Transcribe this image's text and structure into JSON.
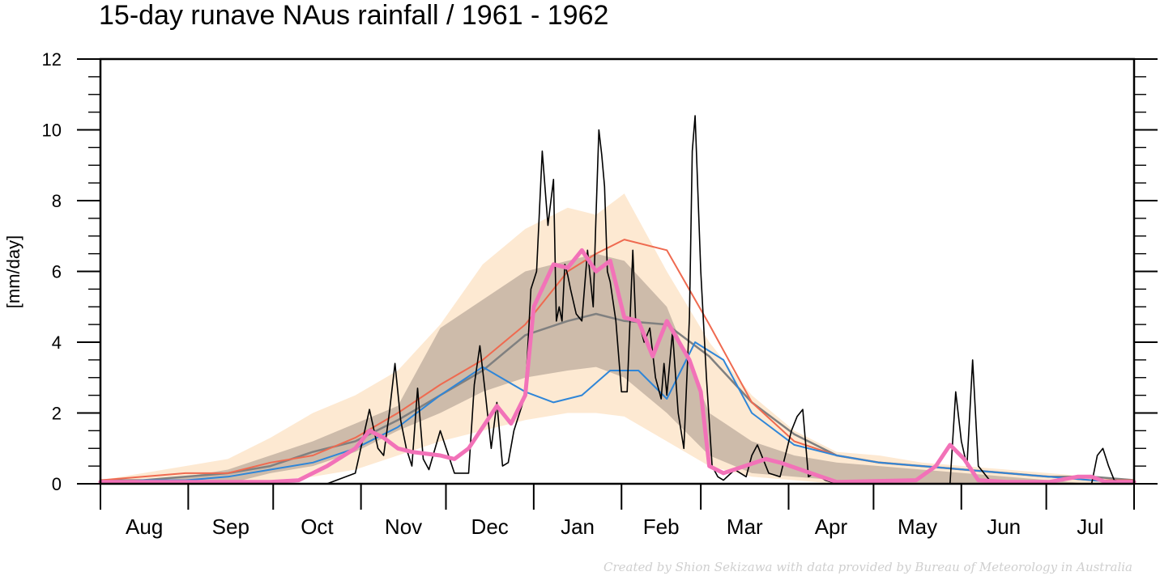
{
  "chart_data": {
    "type": "line",
    "title": "15-day runave NAus rainfall  /  1961 - 1962",
    "ylabel": "[mm/day]",
    "ylim": [
      0,
      12
    ],
    "yticks": [
      "0",
      "2",
      "4",
      "6",
      "8",
      "10",
      "12"
    ],
    "xlim": [
      0,
      365
    ],
    "months": [
      "Aug",
      "Sep",
      "Oct",
      "Nov",
      "Dec",
      "Jan",
      "Feb",
      "Mar",
      "Apr",
      "May",
      "Jun",
      "Jul"
    ],
    "month_starts": [
      0,
      31,
      61,
      92,
      122,
      153,
      184,
      212,
      243,
      273,
      304,
      334,
      365
    ],
    "credit": "Created by Shion Sekizawa with data provided by Bureau of Meteorology in Australia",
    "colors": {
      "outer_band": "#fde9d2",
      "inner_band": "#cdbbaa",
      "median": "#808080",
      "red_line": "#ef6a50",
      "blue_line": "#2f86d8",
      "pink_line": "#f272b8",
      "daily": "#000000"
    },
    "bands": {
      "x": [
        0,
        15,
        30,
        45,
        60,
        75,
        90,
        105,
        120,
        135,
        150,
        165,
        175,
        185,
        200,
        215,
        230,
        245,
        260,
        275,
        290,
        305,
        320,
        335,
        350,
        365
      ],
      "outer_low": [
        0,
        0,
        0,
        0,
        0.1,
        0.2,
        0.4,
        0.8,
        1.2,
        1.5,
        1.8,
        2.0,
        2.0,
        1.9,
        1.2,
        0.5,
        0.2,
        0.1,
        0,
        0,
        0,
        0,
        0,
        0,
        0,
        0
      ],
      "outer_high": [
        0.1,
        0.3,
        0.5,
        0.7,
        1.3,
        2.0,
        2.5,
        3.2,
        4.5,
        6.2,
        7.2,
        7.8,
        7.6,
        8.2,
        6.0,
        4.0,
        2.5,
        1.5,
        0.9,
        0.8,
        0.6,
        0.5,
        0.4,
        0.3,
        0.2,
        0.1
      ],
      "inner_low": [
        0,
        0,
        0,
        0,
        0.3,
        0.5,
        0.9,
        1.5,
        2.0,
        2.6,
        3.0,
        3.2,
        3.3,
        3.0,
        2.0,
        0.8,
        0.3,
        0.2,
        0.1,
        0,
        0,
        0,
        0,
        0,
        0,
        0
      ],
      "inner_high": [
        0,
        0.1,
        0.2,
        0.4,
        0.8,
        1.2,
        1.7,
        2.2,
        4.4,
        5.2,
        6.0,
        6.3,
        6.5,
        6.3,
        5.0,
        2.0,
        1.2,
        0.8,
        0.6,
        0.5,
        0.4,
        0.3,
        0.2,
        0.1,
        0,
        0
      ]
    },
    "series": [
      {
        "name": "",
        "color": "#808080",
        "x": [
          0,
          15,
          30,
          45,
          60,
          75,
          90,
          105,
          120,
          135,
          150,
          165,
          175,
          185,
          200,
          215,
          230,
          245,
          260,
          275,
          290,
          305,
          320,
          335,
          350,
          365
        ],
        "values": [
          0.1,
          0.1,
          0.2,
          0.3,
          0.5,
          0.9,
          1.2,
          1.8,
          2.5,
          3.2,
          4.2,
          4.6,
          4.8,
          4.6,
          4.5,
          3.6,
          2.3,
          1.4,
          0.8,
          0.6,
          0.5,
          0.4,
          0.3,
          0.2,
          0.2,
          0.1
        ]
      },
      {
        "name": "",
        "color": "#ef6a50",
        "x": [
          0,
          15,
          30,
          45,
          60,
          75,
          90,
          105,
          120,
          135,
          150,
          165,
          175,
          185,
          200,
          215,
          230,
          245,
          260,
          275,
          290,
          305,
          320,
          335,
          350,
          365
        ],
        "values": [
          0.1,
          0.2,
          0.3,
          0.3,
          0.6,
          0.8,
          1.3,
          2.0,
          2.8,
          3.5,
          4.5,
          6.0,
          6.5,
          6.9,
          6.6,
          4.5,
          2.3,
          1.2,
          0.8,
          0.6,
          0.5,
          0.4,
          0.3,
          0.2,
          0.1,
          0.1
        ]
      },
      {
        "name": "",
        "color": "#2f86d8",
        "x": [
          0,
          15,
          30,
          45,
          60,
          75,
          90,
          105,
          120,
          135,
          150,
          160,
          170,
          180,
          190,
          200,
          210,
          220,
          230,
          245,
          260,
          275,
          290,
          305,
          320,
          335,
          350,
          365
        ],
        "values": [
          0,
          0.1,
          0.1,
          0.2,
          0.4,
          0.6,
          1.0,
          1.6,
          2.5,
          3.3,
          2.6,
          2.3,
          2.5,
          3.2,
          3.2,
          2.4,
          4.0,
          3.5,
          2.0,
          1.1,
          0.8,
          0.6,
          0.5,
          0.4,
          0.3,
          0.2,
          0.1,
          0
        ]
      },
      {
        "name": "",
        "color": "#f272b8",
        "x": [
          0,
          60,
          70,
          80,
          90,
          95,
          100,
          105,
          110,
          120,
          125,
          130,
          140,
          145,
          150,
          153,
          160,
          165,
          170,
          175,
          180,
          185,
          190,
          195,
          200,
          208,
          212,
          215,
          220,
          235,
          240,
          260,
          288,
          295,
          300,
          305,
          310,
          320,
          335,
          345,
          350,
          355,
          365
        ],
        "values": [
          0.05,
          0.05,
          0.1,
          0.5,
          1.0,
          1.5,
          1.3,
          1.0,
          0.9,
          0.8,
          0.7,
          1.0,
          2.2,
          1.7,
          2.5,
          5.0,
          6.2,
          6.1,
          6.6,
          6.0,
          6.3,
          4.7,
          4.6,
          3.6,
          4.6,
          3.5,
          2.6,
          0.5,
          0.3,
          0.7,
          0.6,
          0.05,
          0.1,
          0.5,
          1.1,
          0.7,
          0.1,
          0.05,
          0.05,
          0.2,
          0.2,
          0.05,
          0.05
        ]
      },
      {
        "name": "",
        "color": "#000000",
        "x": [
          0,
          80,
          90,
          95,
          98,
          100,
          102,
          104,
          106,
          108,
          110,
          112,
          114,
          116,
          120,
          125,
          130,
          132,
          134,
          136,
          138,
          140,
          142,
          144,
          146,
          148,
          150,
          152,
          154,
          156,
          158,
          160,
          161,
          162,
          163,
          164,
          165,
          166,
          168,
          170,
          172,
          174,
          175,
          176,
          177,
          178,
          179,
          180,
          182,
          184,
          186,
          188,
          189,
          190,
          192,
          194,
          196,
          198,
          199,
          200,
          202,
          204,
          206,
          208,
          209,
          210,
          212,
          214,
          216,
          218,
          220,
          224,
          226,
          228,
          230,
          232,
          236,
          240,
          244,
          246,
          248,
          250,
          252,
          256,
          260,
          300,
          302,
          304,
          306,
          308,
          310,
          315,
          350,
          352,
          354,
          356,
          358,
          365
        ],
        "values": [
          0,
          0,
          0.3,
          2.1,
          1.0,
          0.8,
          2.0,
          3.4,
          1.8,
          1.0,
          0.5,
          2.7,
          0.7,
          0.4,
          1.5,
          0.3,
          0.3,
          2.8,
          3.9,
          2.5,
          1.0,
          2.3,
          0.5,
          0.6,
          1.5,
          2.0,
          2.5,
          5.5,
          6.0,
          9.4,
          7.3,
          8.6,
          4.6,
          5.0,
          4.6,
          6.2,
          5.9,
          5.5,
          4.8,
          4.6,
          6.6,
          5.0,
          7.6,
          10.0,
          9.3,
          8.4,
          6.0,
          5.7,
          4.6,
          2.6,
          2.6,
          6.6,
          4.6,
          4.6,
          4.0,
          4.4,
          3.0,
          2.4,
          3.4,
          2.5,
          4.3,
          2.0,
          1.0,
          4.7,
          9.4,
          10.4,
          6.0,
          3.0,
          0.5,
          0.2,
          0.1,
          0.4,
          0.3,
          0.2,
          0.8,
          1.1,
          0.3,
          0.2,
          1.5,
          1.9,
          2.1,
          0.2,
          0.3,
          0.1,
          0,
          0,
          2.6,
          1.2,
          0.5,
          3.5,
          0.5,
          0,
          0,
          0.8,
          1.0,
          0.5,
          0.1,
          0
        ]
      }
    ]
  }
}
